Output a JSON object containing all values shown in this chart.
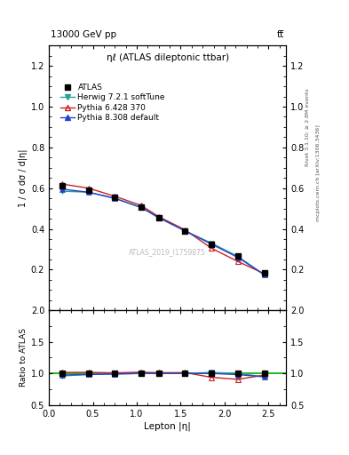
{
  "title_top": "13000 GeV pp",
  "title_top_right": "tt̅",
  "plot_title": "ηℓ (ATLAS dileptonic ttbar)",
  "watermark": "ATLAS_2019_I1759875",
  "xlabel": "Lepton |η|",
  "ylabel": "1 / σ dσ / d|η|",
  "ylabel_ratio": "Ratio to ATLAS",
  "right_label": "Rivet 3.1.10; ≥ 2.8M events",
  "right_label2": "mcplots.cern.ch [arXiv:1306.3436]",
  "xdata": [
    0.15,
    0.45,
    0.75,
    1.05,
    1.25,
    1.55,
    1.85,
    2.15,
    2.45
  ],
  "atlas_y": [
    0.61,
    0.59,
    0.555,
    0.505,
    0.455,
    0.39,
    0.325,
    0.265,
    0.185
  ],
  "herwig_y": [
    0.585,
    0.58,
    0.55,
    0.505,
    0.455,
    0.39,
    0.33,
    0.265,
    0.175
  ],
  "pythia6_y": [
    0.62,
    0.6,
    0.56,
    0.515,
    0.46,
    0.395,
    0.305,
    0.24,
    0.18
  ],
  "pythia8_y": [
    0.595,
    0.58,
    0.55,
    0.505,
    0.455,
    0.39,
    0.325,
    0.26,
    0.175
  ],
  "herwig_ratio": [
    0.96,
    0.983,
    0.991,
    1.0,
    1.0,
    1.0,
    1.015,
    1.0,
    0.946
  ],
  "pythia6_ratio": [
    1.016,
    1.017,
    1.009,
    1.02,
    1.011,
    1.013,
    0.938,
    0.906,
    0.973
  ],
  "pythia8_ratio": [
    0.975,
    0.983,
    0.991,
    1.0,
    1.0,
    1.0,
    1.0,
    0.981,
    0.946
  ],
  "atlas_color": "#000000",
  "herwig_color": "#2aa198",
  "pythia6_color": "#cc2222",
  "pythia8_color": "#2244cc",
  "ylim_main": [
    0.0,
    1.3
  ],
  "ylim_ratio": [
    0.5,
    2.0
  ],
  "yticks_main": [
    0.2,
    0.4,
    0.6,
    0.8,
    1.0,
    1.2
  ],
  "yticks_ratio": [
    0.5,
    1.0,
    1.5,
    2.0
  ],
  "xlim": [
    0.0,
    2.7
  ]
}
